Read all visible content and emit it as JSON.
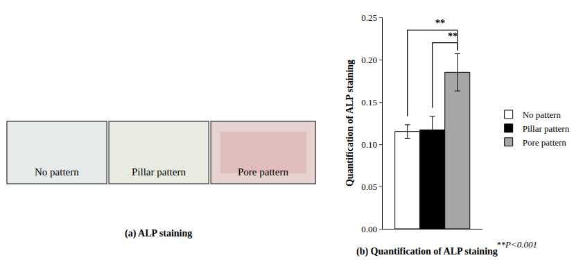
{
  "panel_a": {
    "caption": "(a) ALP staining",
    "images": [
      {
        "label": "No pattern"
      },
      {
        "label": "Pillar pattern"
      },
      {
        "label": "Pore pattern"
      }
    ]
  },
  "chart_data": {
    "type": "bar",
    "caption": "(b) Quantification of ALP staining",
    "y_label": "Quantification of ALP staining",
    "categories": [
      null
    ],
    "series": [
      {
        "name": "No pattern",
        "color": "#ffffff",
        "values": [
          0.115
        ],
        "error": [
          0.008
        ]
      },
      {
        "name": "Pillar pattern",
        "color": "#000000",
        "values": [
          0.117
        ],
        "error": [
          0.016
        ]
      },
      {
        "name": "Pore pattern",
        "color": "#a6a6a6",
        "values": [
          0.185
        ],
        "error": [
          0.022
        ]
      }
    ],
    "ylim": [
      0,
      0.25
    ],
    "yticks": [
      {
        "value": 0,
        "label": "0.00"
      },
      {
        "value": 0.05,
        "label": "0.05"
      },
      {
        "value": 0.1,
        "label": "0.10"
      },
      {
        "value": 0.15,
        "label": "0.15"
      },
      {
        "value": 0.2,
        "label": "0.20"
      },
      {
        "value": 0.25,
        "label": "0.25"
      }
    ],
    "grid": false,
    "legend": "right",
    "tick_labels": "y",
    "annotations": [
      {
        "text": "**",
        "from": "No pattern",
        "to": "Pore pattern"
      },
      {
        "text": "**",
        "from": "Pillar pattern",
        "to": "Pore pattern"
      }
    ],
    "note": "**P<0.001"
  }
}
